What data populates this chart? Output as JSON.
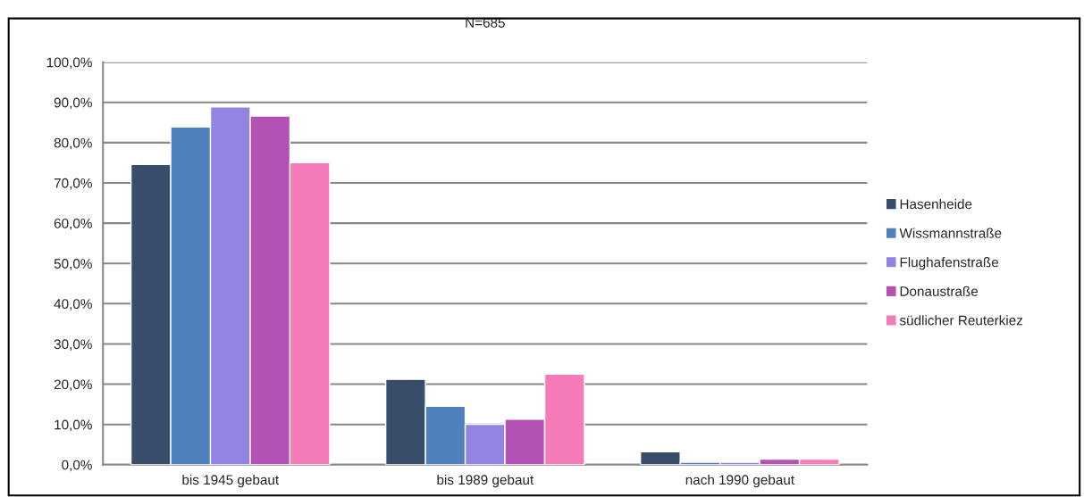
{
  "chart_data": {
    "type": "bar",
    "title": "N=685",
    "categories": [
      "bis 1945 gebaut",
      "bis 1989 gebaut",
      "nach 1990 gebaut"
    ],
    "series": [
      {
        "name": "Hasenheide",
        "color": "#374d6a",
        "values": [
          74.6,
          21.2,
          3.2
        ]
      },
      {
        "name": "Wissmannstraße",
        "color": "#4f81bd",
        "values": [
          83.9,
          14.5,
          0.6
        ]
      },
      {
        "name": "Flughafenstraße",
        "color": "#9384e2",
        "values": [
          88.9,
          10.0,
          0.6
        ]
      },
      {
        "name": "Donaustraße",
        "color": "#b352b3",
        "values": [
          86.6,
          11.3,
          1.4
        ]
      },
      {
        "name": "südlicher Reuterkiez",
        "color": "#f47bb8",
        "values": [
          75.0,
          22.5,
          1.4
        ]
      }
    ],
    "ylim": [
      0,
      100
    ],
    "yticks": [
      {
        "value": 0,
        "label": "0,0%"
      },
      {
        "value": 10,
        "label": "10,0%"
      },
      {
        "value": 20,
        "label": "20,0%"
      },
      {
        "value": 30,
        "label": "30,0%"
      },
      {
        "value": 40,
        "label": "40,0%"
      },
      {
        "value": 50,
        "label": "50,0%"
      },
      {
        "value": 60,
        "label": "60,0%"
      },
      {
        "value": 70,
        "label": "70,0%"
      },
      {
        "value": 80,
        "label": "80,0%"
      },
      {
        "value": 90,
        "label": "90,0%"
      },
      {
        "value": 100,
        "label": "100,0%"
      }
    ],
    "grid": "y",
    "legend": "right"
  }
}
